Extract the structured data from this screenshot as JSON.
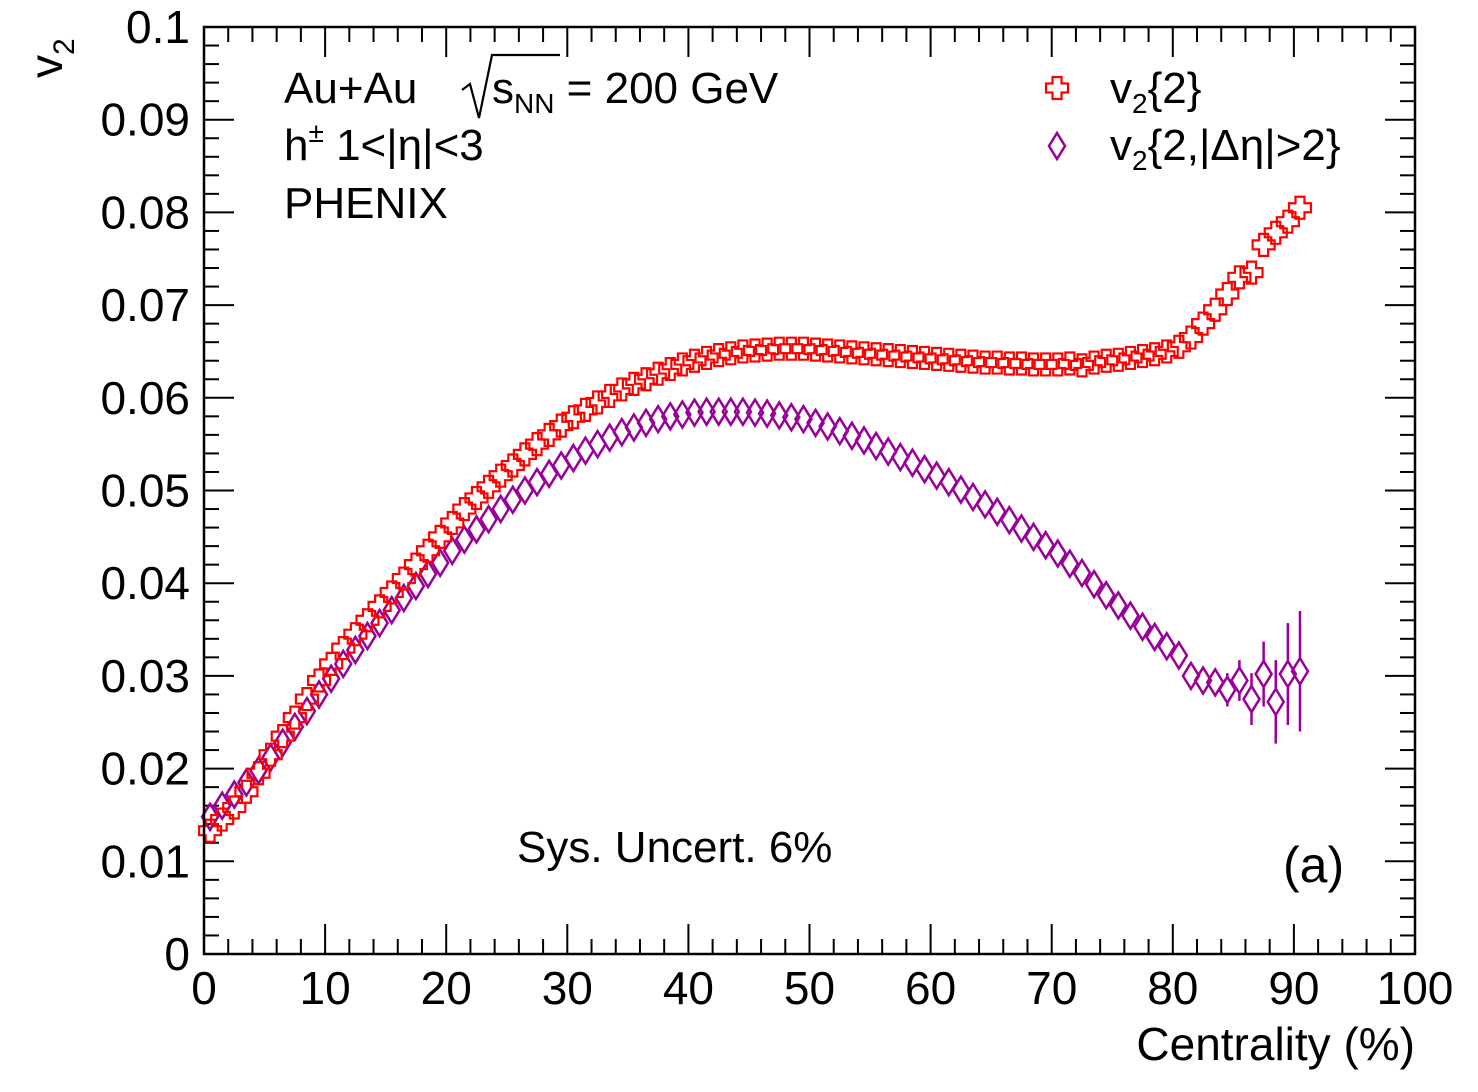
{
  "chart_data": {
    "type": "scatter",
    "title": "",
    "xlabel": "Centrality (%)",
    "ylabel": "v",
    "ylabel_sub": "2",
    "xlim": [
      0,
      100
    ],
    "ylim": [
      0,
      0.1
    ],
    "x_ticks": [
      0,
      10,
      20,
      30,
      40,
      50,
      60,
      70,
      80,
      90,
      100
    ],
    "x_tick_labels": [
      "0",
      "10",
      "20",
      "30",
      "40",
      "50",
      "60",
      "70",
      "80",
      "90",
      "100"
    ],
    "y_ticks": [
      0,
      0.01,
      0.02,
      0.03,
      0.04,
      0.05,
      0.06,
      0.07,
      0.08,
      0.09,
      0.1
    ],
    "y_tick_labels": [
      "0",
      "0.01",
      "0.02",
      "0.03",
      "0.04",
      "0.05",
      "0.06",
      "0.07",
      "0.08",
      "0.09",
      "0.1"
    ],
    "grid": false,
    "legend_position": "top-right",
    "annotations": {
      "collision_prefix": "Au+Au",
      "sqrt_s_var": "s",
      "sqrt_s_sub": "NN",
      "energy": " = 200 GeV",
      "particle": "h",
      "particle_sup": "±",
      "eta_range": " 1<|η|<3",
      "experiment": "PHENIX",
      "systematic": "Sys. Uncert. 6%",
      "panel": "(a)"
    },
    "series": [
      {
        "name": "v",
        "name_sub": "2",
        "name_rest": "{2}",
        "marker": "open-cross",
        "color": "#ff0000",
        "x": [
          0.5,
          1.5,
          2.5,
          3.5,
          4.5,
          5.5,
          6.5,
          7.5,
          8.5,
          9.5,
          10.5,
          11.5,
          12.5,
          13.5,
          14.5,
          15.5,
          16.5,
          17.5,
          18.5,
          19.5,
          20.5,
          21.5,
          22.5,
          23.5,
          24.5,
          25.5,
          26.5,
          27.5,
          28.5,
          29.5,
          30.5,
          31.5,
          32.5,
          33.5,
          34.5,
          35.5,
          36.5,
          37.5,
          38.5,
          39.5,
          40.5,
          41.5,
          42.5,
          43.5,
          44.5,
          45.5,
          46.5,
          47.5,
          48.5,
          49.5,
          50.5,
          51.5,
          52.5,
          53.5,
          54.5,
          55.5,
          56.5,
          57.5,
          58.5,
          59.5,
          60.5,
          61.5,
          62.5,
          63.5,
          64.5,
          65.5,
          66.5,
          67.5,
          68.5,
          69.5,
          70.5,
          71.5,
          72.5,
          73.5,
          74.5,
          75.5,
          76.5,
          77.5,
          78.5,
          79.5,
          80.5,
          81.5,
          82.5,
          83.5,
          84.5,
          85.5,
          86.5,
          87.5,
          88.5,
          89.5,
          90.5
        ],
        "y": [
          0.0133,
          0.0145,
          0.0158,
          0.0175,
          0.0195,
          0.0215,
          0.0235,
          0.0255,
          0.0275,
          0.0295,
          0.0313,
          0.033,
          0.0345,
          0.036,
          0.0375,
          0.039,
          0.0405,
          0.042,
          0.0435,
          0.045,
          0.0465,
          0.048,
          0.0492,
          0.0504,
          0.0516,
          0.0527,
          0.0539,
          0.055,
          0.056,
          0.057,
          0.0579,
          0.0587,
          0.0595,
          0.0602,
          0.0609,
          0.0615,
          0.062,
          0.0626,
          0.0631,
          0.0636,
          0.064,
          0.0643,
          0.0646,
          0.0648,
          0.065,
          0.0651,
          0.0652,
          0.0653,
          0.0653,
          0.0653,
          0.0652,
          0.0651,
          0.065,
          0.0649,
          0.0648,
          0.0647,
          0.0646,
          0.0645,
          0.0644,
          0.0643,
          0.0642,
          0.0641,
          0.064,
          0.0639,
          0.0638,
          0.0638,
          0.0637,
          0.0637,
          0.0636,
          0.0636,
          0.0636,
          0.0637,
          0.0635,
          0.0638,
          0.064,
          0.0641,
          0.0643,
          0.0645,
          0.0647,
          0.065,
          0.0655,
          0.0665,
          0.068,
          0.0695,
          0.0712,
          0.073,
          0.0735,
          0.0765,
          0.0778,
          0.079,
          0.0805
        ]
      },
      {
        "name": "v",
        "name_sub": "2",
        "name_rest": "{2,|Δη|>2}",
        "marker": "open-diamond",
        "color": "#990099",
        "x": [
          0.5,
          1.5,
          2.5,
          3.5,
          4.5,
          5.5,
          6.5,
          7.5,
          8.5,
          9.5,
          10.5,
          11.5,
          12.5,
          13.5,
          14.5,
          15.5,
          16.5,
          17.5,
          18.5,
          19.5,
          20.5,
          21.5,
          22.5,
          23.5,
          24.5,
          25.5,
          26.5,
          27.5,
          28.5,
          29.5,
          30.5,
          31.5,
          32.5,
          33.5,
          34.5,
          35.5,
          36.5,
          37.5,
          38.5,
          39.5,
          40.5,
          41.5,
          42.5,
          43.5,
          44.5,
          45.5,
          46.5,
          47.5,
          48.5,
          49.5,
          50.5,
          51.5,
          52.5,
          53.5,
          54.5,
          55.5,
          56.5,
          57.5,
          58.5,
          59.5,
          60.5,
          61.5,
          62.5,
          63.5,
          64.5,
          65.5,
          66.5,
          67.5,
          68.5,
          69.5,
          70.5,
          71.5,
          72.5,
          73.5,
          74.5,
          75.5,
          76.5,
          77.5,
          78.5,
          79.5,
          80.5,
          81.5,
          82.5,
          83.5,
          84.5,
          85.5,
          86.5,
          87.5,
          88.5,
          89.5,
          90.5
        ],
        "y": [
          0.0148,
          0.016,
          0.0172,
          0.0185,
          0.0198,
          0.0212,
          0.0228,
          0.0245,
          0.0262,
          0.028,
          0.0297,
          0.0313,
          0.0328,
          0.0343,
          0.0357,
          0.0371,
          0.0384,
          0.0397,
          0.041,
          0.0422,
          0.0435,
          0.0447,
          0.0458,
          0.0469,
          0.048,
          0.049,
          0.05,
          0.0509,
          0.0518,
          0.0527,
          0.0535,
          0.0543,
          0.055,
          0.0557,
          0.0563,
          0.0568,
          0.0573,
          0.0577,
          0.058,
          0.0582,
          0.0584,
          0.0585,
          0.0585,
          0.0585,
          0.0585,
          0.0584,
          0.0583,
          0.0581,
          0.0579,
          0.0577,
          0.0573,
          0.0569,
          0.0564,
          0.0559,
          0.0554,
          0.0548,
          0.0542,
          0.0536,
          0.053,
          0.0523,
          0.0516,
          0.0509,
          0.0501,
          0.0493,
          0.0485,
          0.0477,
          0.0468,
          0.0459,
          0.045,
          0.0441,
          0.0432,
          0.0421,
          0.0411,
          0.0399,
          0.0387,
          0.0376,
          0.0365,
          0.0353,
          0.0342,
          0.0332,
          0.0322,
          0.03,
          0.0295,
          0.0293,
          0.0285,
          0.0295,
          0.0275,
          0.0302,
          0.0272,
          0.0302,
          0.0305
        ],
        "err": [
          0.0004,
          0.0004,
          0.0004,
          0.0004,
          0.0004,
          0.0004,
          0.0004,
          0.0004,
          0.0004,
          0.0004,
          0.0004,
          0.0004,
          0.0004,
          0.0004,
          0.0004,
          0.0004,
          0.0004,
          0.0004,
          0.0004,
          0.0004,
          0.0004,
          0.0004,
          0.0004,
          0.0004,
          0.0004,
          0.0004,
          0.0004,
          0.0004,
          0.0004,
          0.0004,
          0.0004,
          0.0004,
          0.0004,
          0.0004,
          0.0004,
          0.0004,
          0.0004,
          0.0004,
          0.0004,
          0.0004,
          0.0004,
          0.0004,
          0.0004,
          0.0004,
          0.0004,
          0.0004,
          0.0004,
          0.0004,
          0.0004,
          0.0004,
          0.0004,
          0.0004,
          0.0004,
          0.0004,
          0.0004,
          0.0004,
          0.0004,
          0.0004,
          0.0004,
          0.0004,
          0.0004,
          0.0004,
          0.0004,
          0.0004,
          0.0004,
          0.0004,
          0.0004,
          0.0004,
          0.0004,
          0.0004,
          0.0004,
          0.0004,
          0.0004,
          0.0004,
          0.0004,
          0.0004,
          0.0005,
          0.0005,
          0.0006,
          0.0007,
          0.0008,
          0.001,
          0.0012,
          0.0015,
          0.0018,
          0.0022,
          0.0028,
          0.0035,
          0.0045,
          0.0055,
          0.0065
        ]
      }
    ]
  }
}
